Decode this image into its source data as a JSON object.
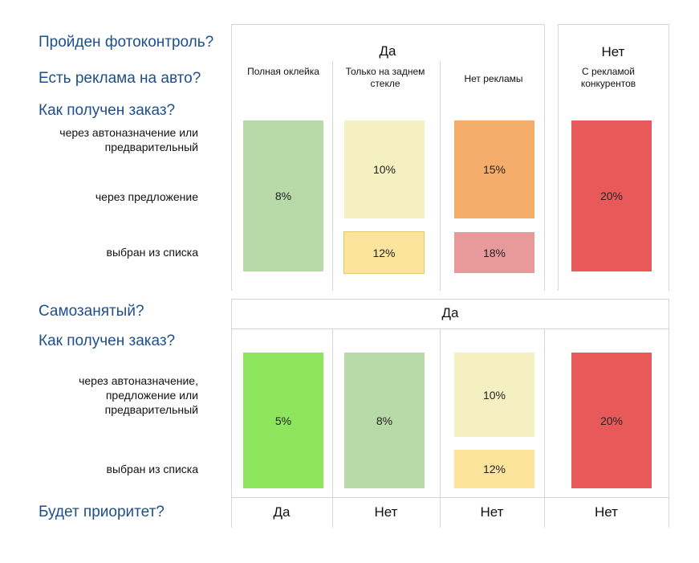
{
  "questions": {
    "photo_control": "Пройден фотоконтроль?",
    "ads_on_car": "Есть реклама на авто?",
    "order_source_1": "Как получен заказ?",
    "self_employed": "Самозанятый?",
    "order_source_2": "Как получен заказ?",
    "priority": "Будет приоритет?"
  },
  "section1": {
    "photo_yes": "Да",
    "photo_no": "Нет",
    "columns": [
      "Полная оклейка",
      "Только на заднем стекле",
      "Нет рекламы",
      "С рекламой конкурентов"
    ],
    "rows": [
      "через автоназначение или предварительный",
      "через предложение",
      "выбран из списка"
    ],
    "cells": {
      "full_wrap": "8%",
      "rear_assign_offer": "10%",
      "rear_list": "12%",
      "noad_assign_offer": "15%",
      "noad_list": "18%",
      "competitor": "20%"
    }
  },
  "section2": {
    "self_employed_yes": "Да",
    "rows": [
      "через автоназначение, предложение или предварительный",
      "выбран из списка"
    ],
    "cells": {
      "col1": "5%",
      "col2": "8%",
      "col3_assign": "10%",
      "col3_list": "12%",
      "col4": "20%"
    }
  },
  "priority_values": [
    "Да",
    "Нет",
    "Нет",
    "Нет"
  ],
  "colors": {
    "question_text": "#1f4e8c",
    "light_green": "#b8d9a8",
    "bright_green": "#8ee65f",
    "pale_yellow": "#f5f0c2",
    "yellow": "#fde49c",
    "orange": "#f5ad6c",
    "pink": "#e89a9a",
    "red": "#e85a5a"
  }
}
